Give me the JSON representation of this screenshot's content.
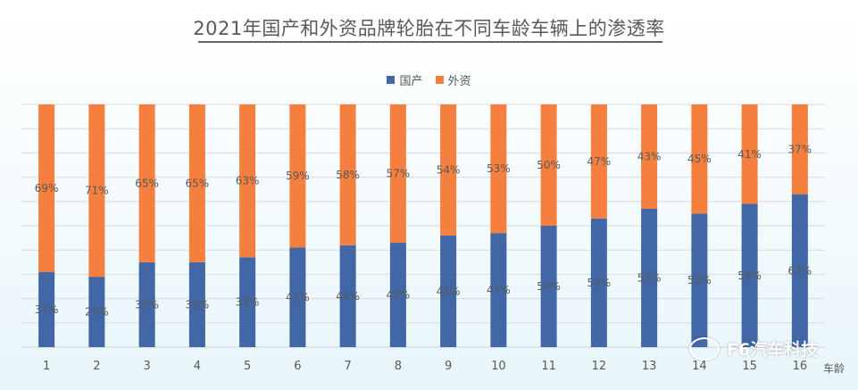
{
  "colors": {
    "domestic": "#4167A7",
    "foreign": "#F47F3E",
    "grid": "#D9D9D9",
    "label": "#595959"
  },
  "watermark": {
    "text": "F6汽车科技",
    "icon": "wechat-icon"
  },
  "chart_data": {
    "type": "bar",
    "stacked": true,
    "normalized_percent": true,
    "title": "2021年国产和外资品牌轮胎在不同车龄车辆上的渗透率",
    "xlabel": "车龄",
    "ylabel": "",
    "ylim": [
      0,
      100
    ],
    "grid": true,
    "legend_position": "top",
    "categories": [
      "1",
      "2",
      "3",
      "4",
      "5",
      "6",
      "7",
      "8",
      "9",
      "10",
      "11",
      "12",
      "13",
      "14",
      "15",
      "16"
    ],
    "series": [
      {
        "name": "国产",
        "values": [
          31,
          29,
          35,
          35,
          37,
          41,
          42,
          43,
          46,
          47,
          50,
          53,
          57,
          55,
          59,
          63
        ],
        "labels": [
          "31%",
          "29%",
          "35%",
          "35%",
          "37%",
          "41%",
          "42%",
          "43%",
          "46%",
          "47%",
          "50%",
          "53%",
          "57%",
          "55%",
          "59%",
          "63%"
        ]
      },
      {
        "name": "外资",
        "values": [
          69,
          71,
          65,
          65,
          63,
          59,
          58,
          57,
          54,
          53,
          50,
          47,
          43,
          45,
          41,
          37
        ],
        "labels": [
          "69%",
          "71%",
          "65%",
          "65%",
          "63%",
          "59%",
          "58%",
          "57%",
          "54%",
          "53%",
          "50%",
          "47%",
          "43%",
          "45%",
          "41%",
          "37%"
        ]
      }
    ]
  }
}
